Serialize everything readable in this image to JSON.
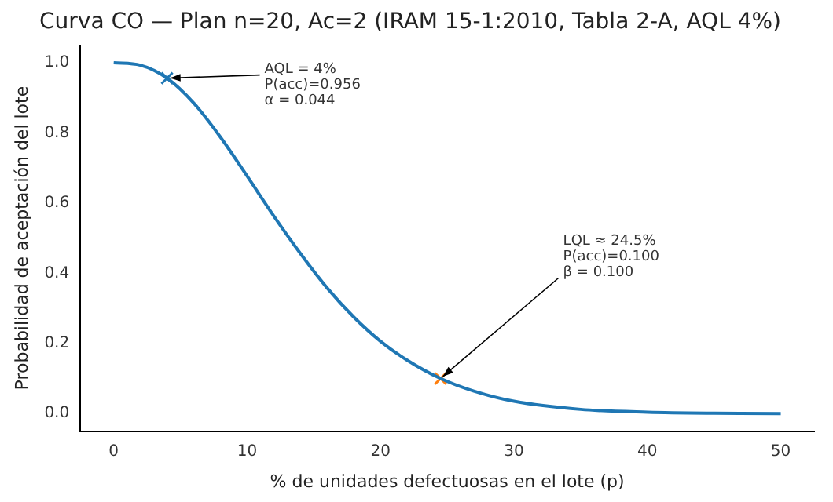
{
  "chart_data": {
    "type": "line",
    "title": "Curva CO — Plan n=20, Ac=2 (IRAM 15-1:2010, Tabla 2-A, AQL 4%)",
    "xlabel": "% de unidades defectuosas en el lote (p)",
    "ylabel": "Probabilidad de aceptación del lote",
    "xlim": [
      -2.5,
      52.5
    ],
    "ylim": [
      -0.05,
      1.05
    ],
    "xticks": [
      0,
      10,
      20,
      30,
      40,
      50
    ],
    "yticks": [
      {
        "value": 0,
        "label": "0.0"
      },
      0.2,
      0.4,
      0.6,
      0.8,
      {
        "value": 1,
        "label": "1.0"
      }
    ],
    "grid": false,
    "legend": false,
    "line_style": "solid",
    "series": [
      {
        "color": "#1f77b4",
        "x": [
          0,
          2,
          4,
          6,
          8,
          10,
          12,
          14,
          16,
          18,
          20,
          22,
          24.5,
          27,
          30,
          35,
          40,
          45,
          50
        ],
        "values": [
          1,
          0.993,
          0.956,
          0.885,
          0.788,
          0.677,
          0.563,
          0.456,
          0.358,
          0.275,
          0.206,
          0.152,
          0.1,
          0.064,
          0.035,
          0.012,
          0.004,
          0.001,
          0.0
        ]
      },
      {
        "type": "scatter",
        "marker": "cross",
        "color": "#1f77b4",
        "x": [
          4
        ],
        "values": [
          0.956
        ]
      },
      {
        "type": "scatter",
        "marker": "cross",
        "color": "#ff7f0e",
        "x": [
          24.5
        ],
        "values": [
          0.1
        ]
      }
    ],
    "annotations": [
      {
        "text": "AQL = 4%\nP(acc)=0.956\nα = 0.044",
        "x": 4,
        "y": 0.956
      },
      {
        "text": "LQL ≈ 24.5%\nP(acc)=0.100\nβ = 0.100",
        "x": 24.5,
        "y": 0.1
      }
    ]
  }
}
